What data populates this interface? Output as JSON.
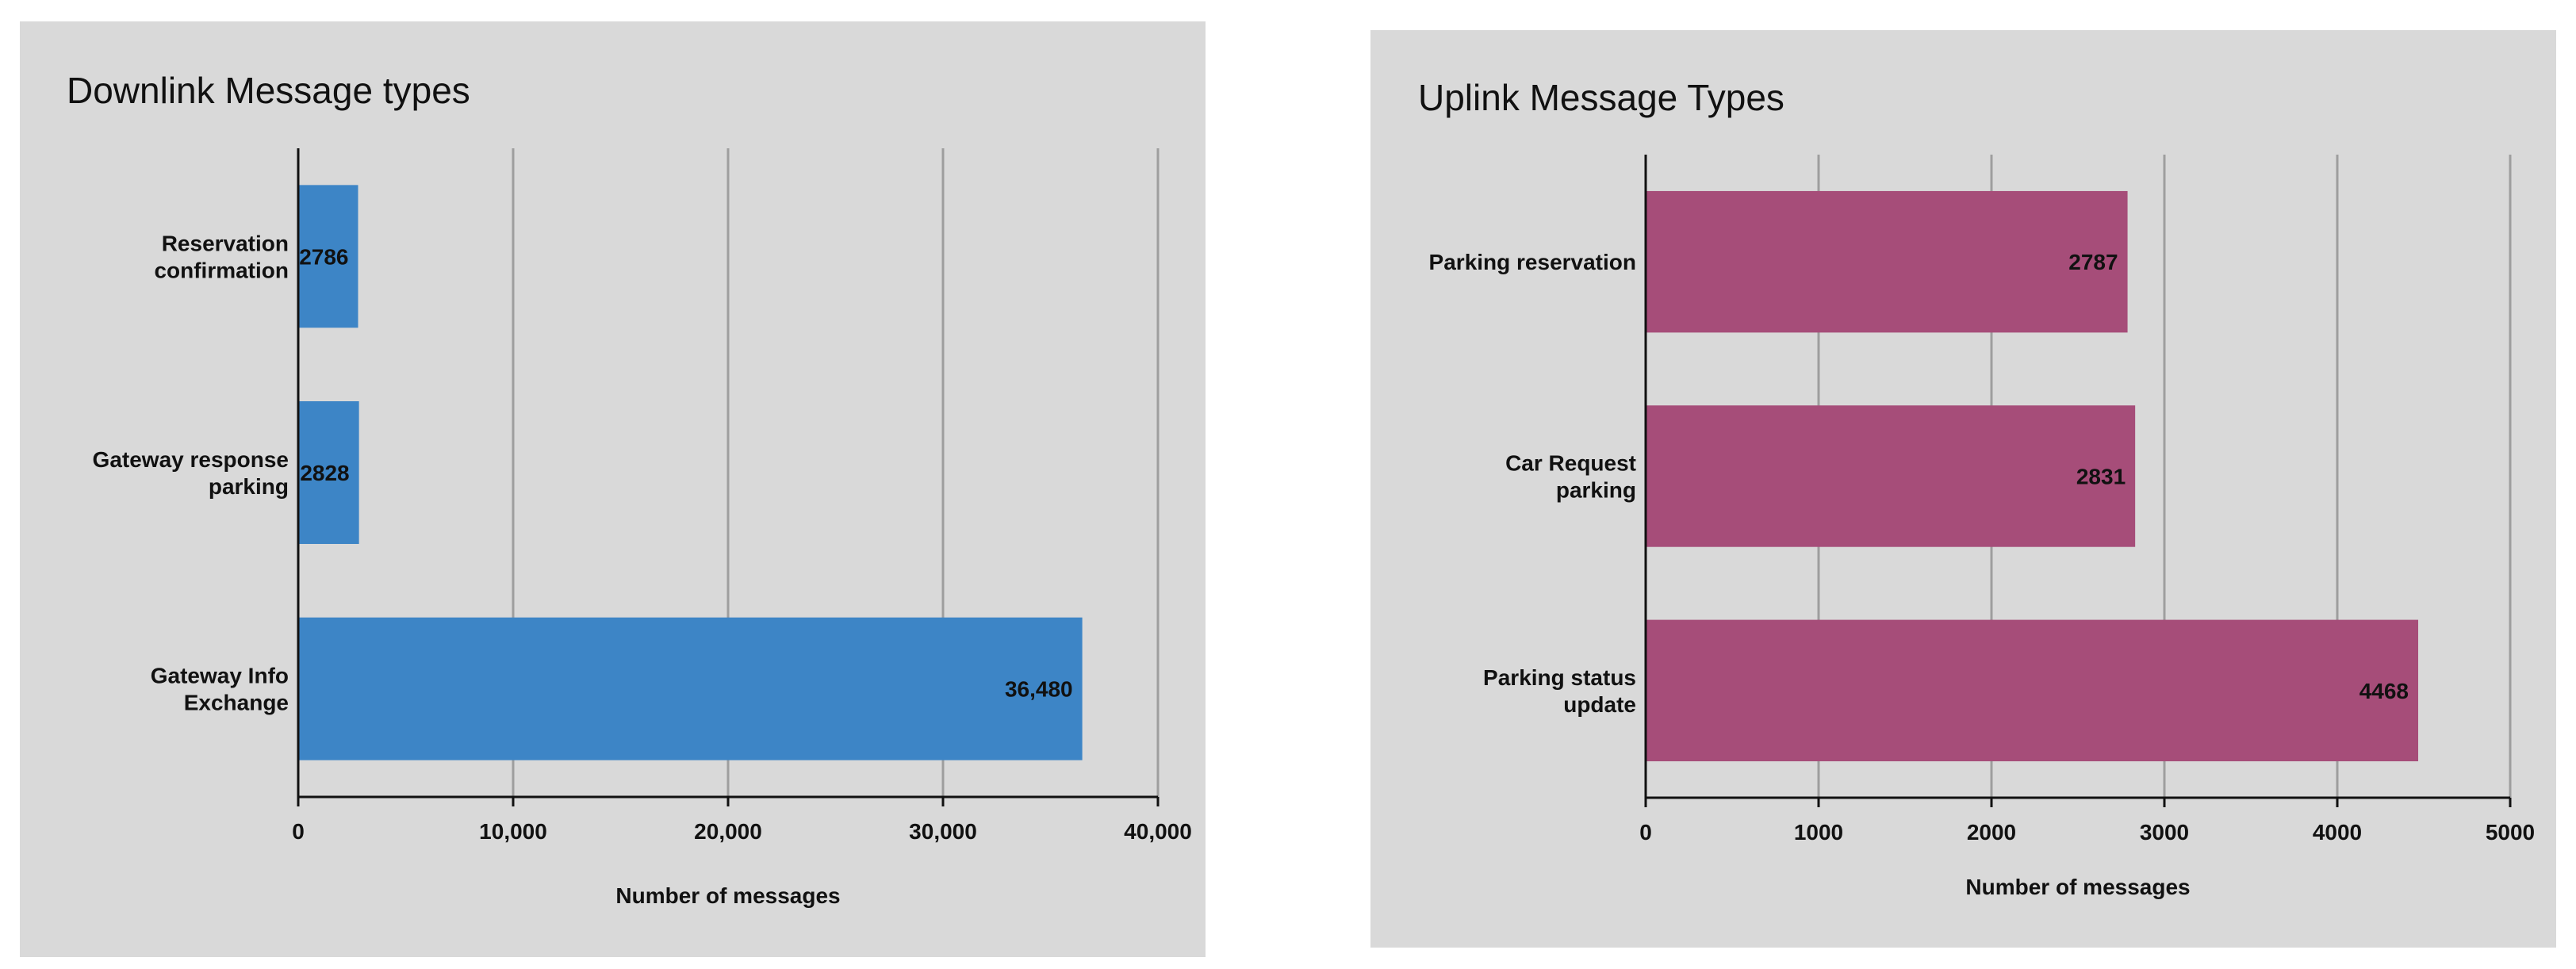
{
  "chart_data": [
    {
      "type": "bar",
      "orientation": "horizontal",
      "title": "Downlink Message types",
      "xlabel": "Number of messages",
      "ylabel": "",
      "categories": [
        "Reservation confirmation",
        "Gateway response parking",
        "Gateway Info Exchange"
      ],
      "values": [
        2786,
        2828,
        36480
      ],
      "data_labels": [
        "2786",
        "2828",
        "36,480"
      ],
      "xlim": [
        0,
        40000
      ],
      "ticks": [
        0,
        10000,
        20000,
        30000,
        40000
      ],
      "tick_labels": [
        "0",
        "10,000",
        "20,000",
        "30,000",
        "40,000"
      ],
      "color": "#3d85c6",
      "grid": true,
      "legend": "none"
    },
    {
      "type": "bar",
      "orientation": "horizontal",
      "title": "Uplink Message Types",
      "xlabel": "Number of messages",
      "ylabel": "",
      "categories": [
        "Parking reservation",
        "Car Request parking",
        "Parking status update"
      ],
      "values": [
        2787,
        2831,
        4468
      ],
      "data_labels": [
        "2787",
        "2831",
        "4468"
      ],
      "xlim": [
        0,
        5000
      ],
      "ticks": [
        0,
        1000,
        2000,
        3000,
        4000,
        5000
      ],
      "tick_labels": [
        "0",
        "1000",
        "2000",
        "3000",
        "4000",
        "5000"
      ],
      "color": "#a64d79",
      "grid": true,
      "legend": "none"
    }
  ]
}
